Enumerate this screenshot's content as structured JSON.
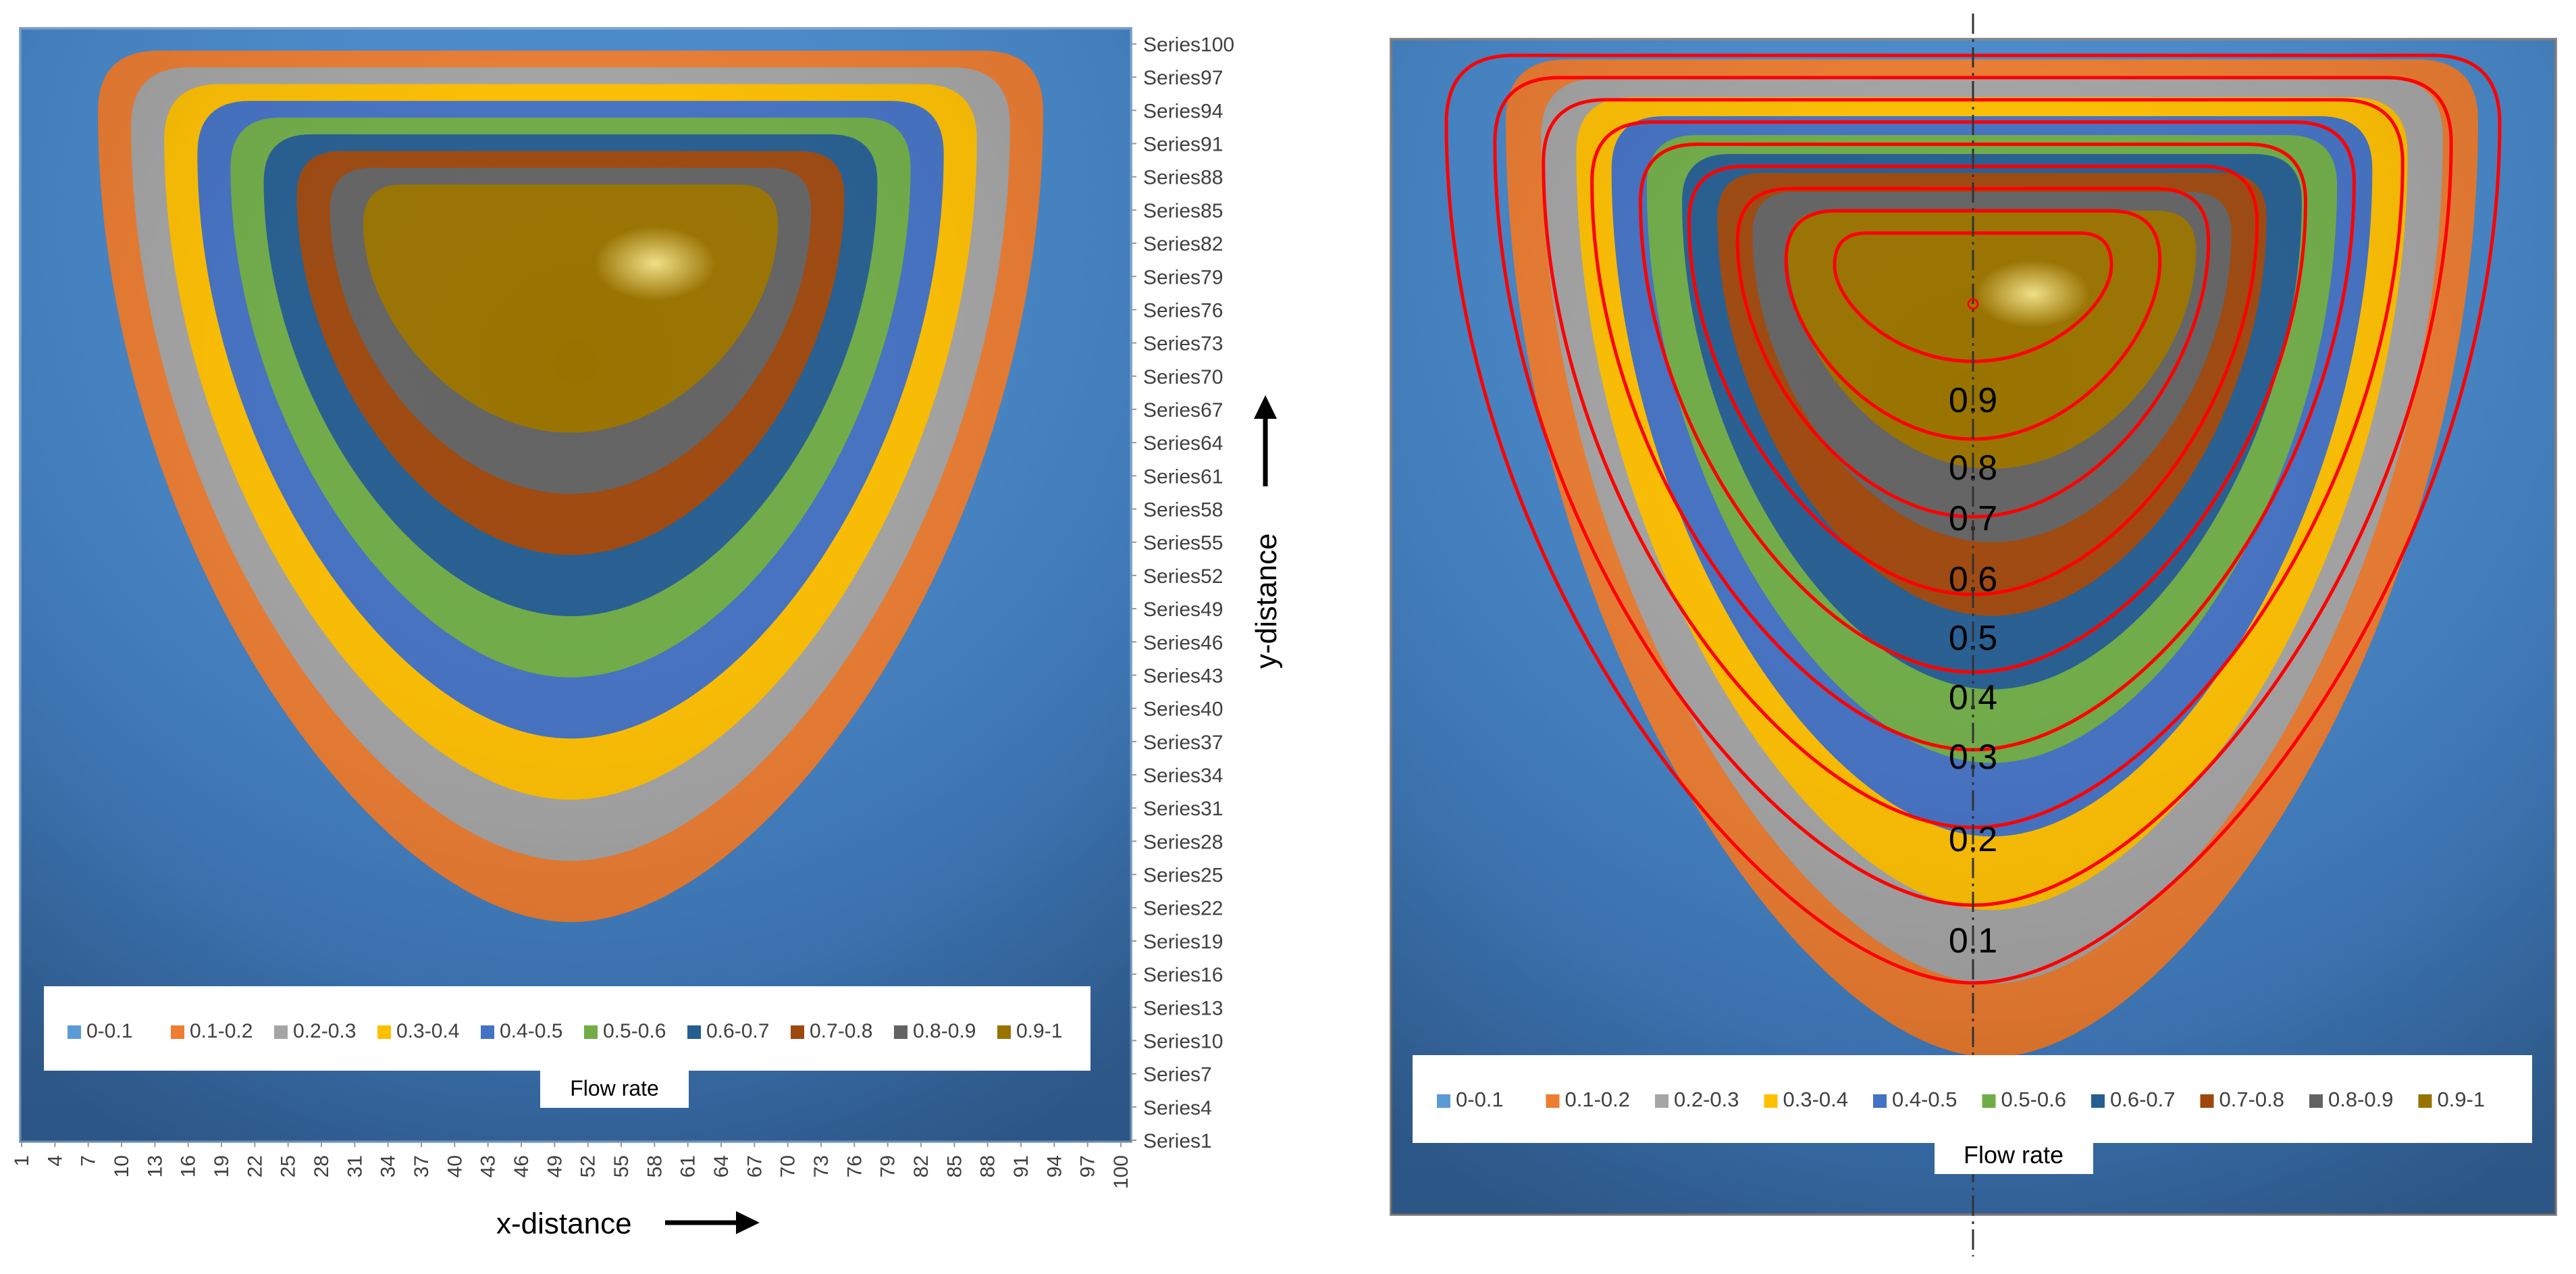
{
  "chart_data": [
    {
      "type": "heatmap",
      "title": "",
      "xlabel": "x-distance",
      "ylabel": "y-distance",
      "x_ticks": [
        1,
        4,
        7,
        10,
        13,
        16,
        19,
        22,
        25,
        28,
        31,
        34,
        37,
        40,
        43,
        46,
        49,
        52,
        55,
        58,
        61,
        64,
        67,
        70,
        73,
        76,
        79,
        82,
        85,
        88,
        91,
        94,
        97,
        100
      ],
      "y_ticks": [
        "Series1",
        "Series4",
        "Series7",
        "Series10",
        "Series13",
        "Series16",
        "Series19",
        "Series22",
        "Series25",
        "Series28",
        "Series31",
        "Series34",
        "Series37",
        "Series40",
        "Series43",
        "Series46",
        "Series49",
        "Series52",
        "Series55",
        "Series58",
        "Series61",
        "Series64",
        "Series67",
        "Series70",
        "Series73",
        "Series76",
        "Series79",
        "Series82",
        "Series85",
        "Series88",
        "Series91",
        "Series94",
        "Series97",
        "Series100"
      ],
      "xlim": [
        1,
        100
      ],
      "ylim": [
        1,
        100
      ],
      "max_location": {
        "x": 50,
        "y": 74
      },
      "legend_title": "Flow rate",
      "legend_position": "bottom",
      "bands": [
        {
          "label": "0-0.1",
          "color": "#5b9bd5"
        },
        {
          "label": "0.1-0.2",
          "color": "#ed7d31"
        },
        {
          "label": "0.2-0.3",
          "color": "#a5a5a5"
        },
        {
          "label": "0.3-0.4",
          "color": "#ffc000"
        },
        {
          "label": "0.4-0.5",
          "color": "#4472c4"
        },
        {
          "label": "0.5-0.6",
          "color": "#70ad47"
        },
        {
          "label": "0.6-0.7",
          "color": "#255e91"
        },
        {
          "label": "0.7-0.8",
          "color": "#9e480e"
        },
        {
          "label": "0.8-0.9",
          "color": "#636363"
        },
        {
          "label": "0.9-1",
          "color": "#997300"
        }
      ]
    },
    {
      "type": "heatmap",
      "title": "",
      "legend_title": "Flow rate",
      "legend_position": "bottom",
      "xlim": [
        1,
        100
      ],
      "ylim": [
        1,
        100
      ],
      "contour_color": "#ff0000",
      "contour_levels": [
        "0.1",
        "0.2",
        "0.3",
        "0.4",
        "0.5",
        "0.6",
        "0.7",
        "0.8",
        "0.9"
      ],
      "max_location": {
        "x": 50,
        "y": 74
      },
      "bands": [
        {
          "label": "0-0.1",
          "color": "#5b9bd5"
        },
        {
          "label": "0.1-0.2",
          "color": "#ed7d31"
        },
        {
          "label": "0.2-0.3",
          "color": "#a5a5a5"
        },
        {
          "label": "0.3-0.4",
          "color": "#ffc000"
        },
        {
          "label": "0.4-0.5",
          "color": "#4472c4"
        },
        {
          "label": "0.5-0.6",
          "color": "#70ad47"
        },
        {
          "label": "0.6-0.7",
          "color": "#255e91"
        },
        {
          "label": "0.7-0.8",
          "color": "#9e480e"
        },
        {
          "label": "0.8-0.9",
          "color": "#636363"
        },
        {
          "label": "0.9-1",
          "color": "#997300"
        }
      ]
    }
  ]
}
